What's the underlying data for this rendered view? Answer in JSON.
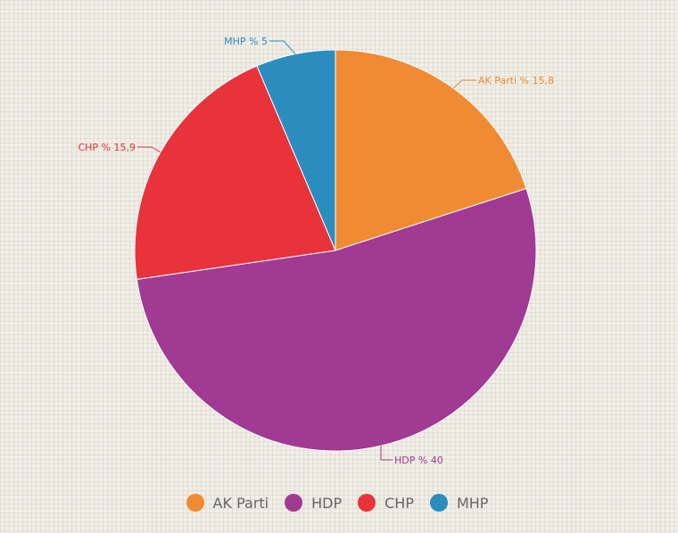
{
  "chart_data": {
    "type": "pie",
    "title": "",
    "slices": [
      {
        "name": "AK Parti",
        "label": "AK Parti % 15,8",
        "value": 20.0,
        "color": "#f18b33"
      },
      {
        "name": "HDP",
        "label": "HDP % 40",
        "value": 52.7,
        "color": "#a13a93"
      },
      {
        "name": "CHP",
        "label": "CHP % 15,9",
        "value": 20.9,
        "color": "#e8333b"
      },
      {
        "name": "MHP",
        "label": "MHP % 5",
        "value": 6.4,
        "color": "#2a8dbe"
      }
    ],
    "legend": {
      "placement": "bottom",
      "items": [
        "AK Parti",
        "HDP",
        "CHP",
        "MHP"
      ]
    }
  }
}
